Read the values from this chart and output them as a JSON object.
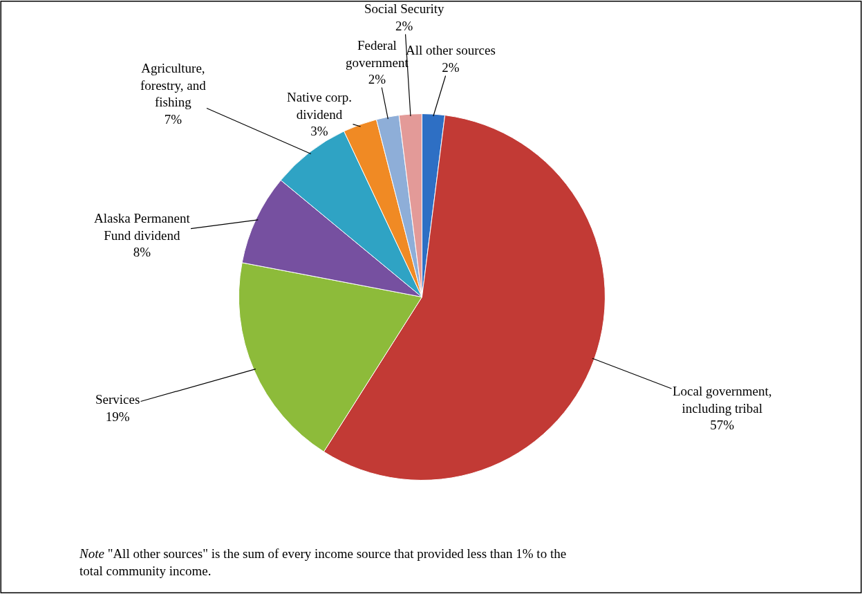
{
  "chart_data": {
    "type": "pie",
    "categories": [
      "All other sources",
      "Local government, including tribal",
      "Services",
      "Alaska Permanent Fund dividend",
      "Agriculture, forestry, and fishing",
      "Native corp. dividend",
      "Federal government",
      "Social Security"
    ],
    "values": [
      2,
      57,
      19,
      8,
      7,
      3,
      2,
      2
    ],
    "value_labels": [
      "2%",
      "57%",
      "19%",
      "8%",
      "7%",
      "3%",
      "2%",
      "2%"
    ],
    "colors": [
      "#2e6fc4",
      "#c23a35",
      "#8dbb3a",
      "#7650a0",
      "#2fa3c4",
      "#f08a24",
      "#8eaed8",
      "#e39a98"
    ],
    "legend": false,
    "annotations": [
      "Note \"All other sources\" is the sum of every income source that provided less than 1% to the\ntotal community income."
    ]
  }
}
